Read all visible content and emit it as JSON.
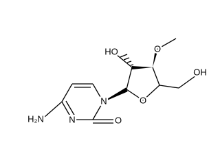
{
  "labels": [
    "HO",
    "O",
    "OH",
    "O",
    "N",
    "N",
    "O",
    "H₂N"
  ]
}
